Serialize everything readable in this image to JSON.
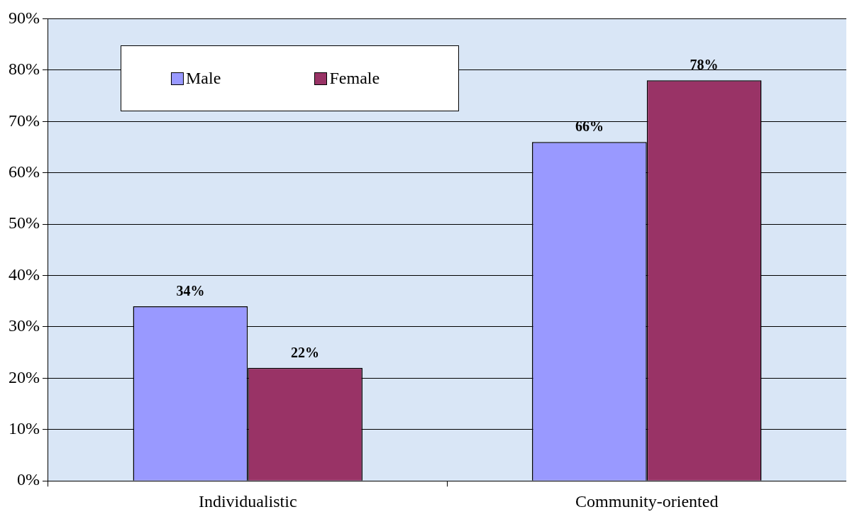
{
  "chart_data": {
    "type": "bar",
    "categories": [
      "Individualistic",
      "Community-oriented"
    ],
    "series": [
      {
        "name": "Male",
        "color": "#9999ff",
        "values": [
          34,
          66
        ],
        "value_labels": [
          "34%",
          "66%"
        ]
      },
      {
        "name": "Female",
        "color": "#993366",
        "values": [
          22,
          78
        ],
        "value_labels": [
          "22%",
          "78%"
        ]
      }
    ],
    "ylim": [
      0,
      90
    ],
    "yticks": [
      {
        "value": 0,
        "label": "0%"
      },
      {
        "value": 10,
        "label": "10%"
      },
      {
        "value": 20,
        "label": "20%"
      },
      {
        "value": 30,
        "label": "30%"
      },
      {
        "value": 40,
        "label": "40%"
      },
      {
        "value": 50,
        "label": "50%"
      },
      {
        "value": 60,
        "label": "60%"
      },
      {
        "value": 70,
        "label": "70%"
      },
      {
        "value": 80,
        "label": "80%"
      },
      {
        "value": 90,
        "label": "90%"
      }
    ],
    "grid": "y",
    "legend": "top left"
  }
}
